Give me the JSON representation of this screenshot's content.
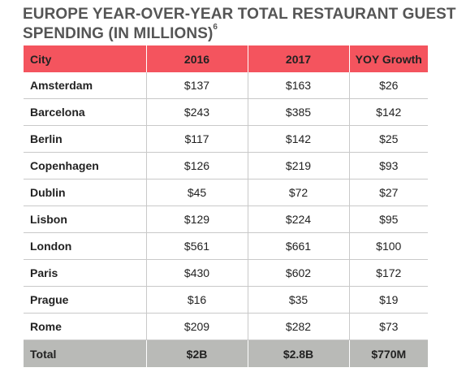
{
  "document": {
    "title": "EUROPE YEAR-OVER-YEAR TOTAL RESTAURANT GUEST SPENDING (IN MILLIONS)",
    "footnote_marker": "6"
  },
  "table": {
    "headers": {
      "city": "City",
      "y2016": "2016",
      "y2017": "2017",
      "growth": "YOY Growth"
    },
    "rows": [
      {
        "city": "Amsterdam",
        "y2016": "$137",
        "y2017": "$163",
        "growth": "$26"
      },
      {
        "city": "Barcelona",
        "y2016": "$243",
        "y2017": "$385",
        "growth": "$142"
      },
      {
        "city": "Berlin",
        "y2016": "$117",
        "y2017": "$142",
        "growth": "$25"
      },
      {
        "city": "Copenhagen",
        "y2016": "$126",
        "y2017": "$219",
        "growth": "$93"
      },
      {
        "city": "Dublin",
        "y2016": "$45",
        "y2017": "$72",
        "growth": "$27"
      },
      {
        "city": "Lisbon",
        "y2016": "$129",
        "y2017": "$224",
        "growth": "$95"
      },
      {
        "city": "London",
        "y2016": "$561",
        "y2017": "$661",
        "growth": "$100"
      },
      {
        "city": "Paris",
        "y2016": "$430",
        "y2017": "$602",
        "growth": "$172"
      },
      {
        "city": "Prague",
        "y2016": "$16",
        "y2017": "$35",
        "growth": "$19"
      },
      {
        "city": "Rome",
        "y2016": "$209",
        "y2017": "$282",
        "growth": "$73"
      }
    ],
    "total": {
      "label": "Total",
      "y2016": "$2B",
      "y2017": "$2.8B",
      "growth": "$770M"
    }
  },
  "colors": {
    "header_bg": "#f4545e",
    "total_bg": "#b9bab7",
    "title_text": "#555555"
  }
}
